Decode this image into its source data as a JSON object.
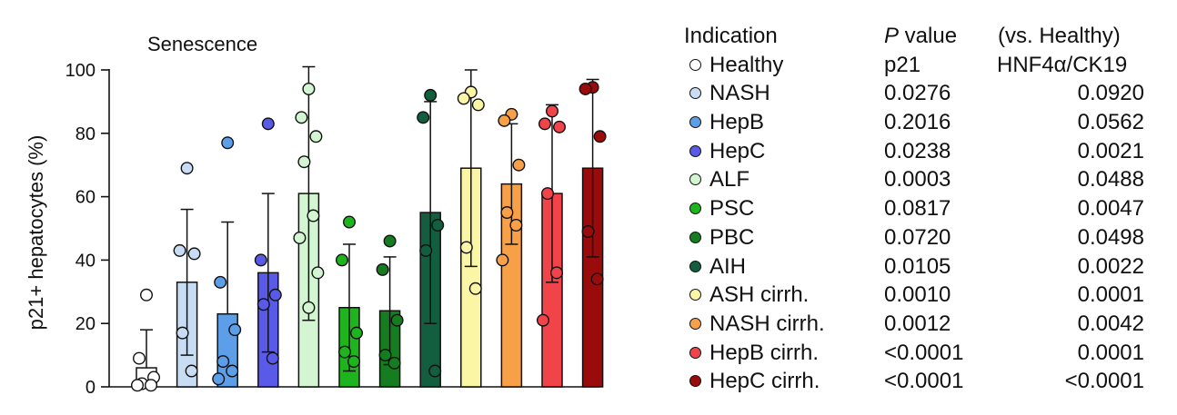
{
  "chart_data": {
    "type": "bar",
    "title": "Senescence",
    "ylabel": "p21+ hepatocytes (%)",
    "xlabel": "",
    "ylim": [
      0,
      100
    ],
    "yticks": [
      0,
      20,
      40,
      60,
      80,
      100
    ],
    "error_bars": "mean ± s.d.",
    "categories": [
      "Healthy",
      "NASH",
      "HepB",
      "HepC",
      "ALF",
      "PSC",
      "PBC",
      "AIH",
      "ASH cirrh.",
      "NASH cirrh.",
      "HepB cirrh.",
      "HepC cirrh."
    ],
    "values": [
      6,
      33,
      23,
      36,
      61,
      25,
      24,
      55,
      69,
      64,
      61,
      69
    ],
    "errors": [
      12,
      23,
      29,
      25,
      40,
      20,
      17,
      35,
      31,
      19,
      28,
      28
    ],
    "points": [
      [
        29,
        9,
        3,
        1,
        0.5,
        0.5
      ],
      [
        69,
        43,
        42,
        17,
        5
      ],
      [
        77,
        33,
        18,
        8,
        5,
        2.5
      ],
      [
        83,
        40,
        29,
        26,
        9
      ],
      [
        94,
        85,
        79,
        71,
        54,
        47,
        36,
        25
      ],
      [
        52,
        40,
        17,
        11,
        8
      ],
      [
        46,
        37,
        21,
        10,
        7.5
      ],
      [
        92,
        85,
        51,
        43,
        5
      ],
      [
        93,
        91,
        89,
        44,
        31
      ],
      [
        86,
        84,
        70,
        55,
        51,
        40
      ],
      [
        87,
        83,
        82,
        61,
        36,
        21
      ],
      [
        94.5,
        94,
        79,
        49,
        34
      ]
    ],
    "colors": [
      "#ffffff",
      "#c8ddf4",
      "#5c9ee8",
      "#5a5ae8",
      "#d4f5d2",
      "#1eb41e",
      "#157d1f",
      "#135e3e",
      "#fbf6a6",
      "#f7a048",
      "#f0444a",
      "#9a0b0b"
    ],
    "legend": {
      "header": {
        "indication": "Indication",
        "p_prefix": "P",
        "p_suffix": " value",
        "vs": "(vs. Healthy)",
        "col_p21": "p21",
        "col_hnf": "HNF4α/CK19"
      },
      "rows": [
        {
          "label": "Healthy",
          "p21": "",
          "hnf": ""
        },
        {
          "label": "NASH",
          "p21": "0.0276",
          "hnf": "0.0920"
        },
        {
          "label": "HepB",
          "p21": "0.2016",
          "hnf": "0.0562"
        },
        {
          "label": "HepC",
          "p21": "0.0238",
          "hnf": "0.0021"
        },
        {
          "label": "ALF",
          "p21": "0.0003",
          "hnf": "0.0488"
        },
        {
          "label": "PSC",
          "p21": "0.0817",
          "hnf": "0.0047"
        },
        {
          "label": "PBC",
          "p21": "0.0720",
          "hnf": "0.0498"
        },
        {
          "label": "AIH",
          "p21": "0.0105",
          "hnf": "0.0022"
        },
        {
          "label": "ASH cirrh.",
          "p21": "0.0010",
          "hnf": "0.0001"
        },
        {
          "label": "NASH cirrh.",
          "p21": "0.0012",
          "hnf": "0.0042"
        },
        {
          "label": "HepB cirrh.",
          "p21": "<0.0001",
          "hnf": "0.0001"
        },
        {
          "label": "HepC cirrh.",
          "p21": "<0.0001",
          "hnf": "<0.0001"
        }
      ]
    }
  }
}
